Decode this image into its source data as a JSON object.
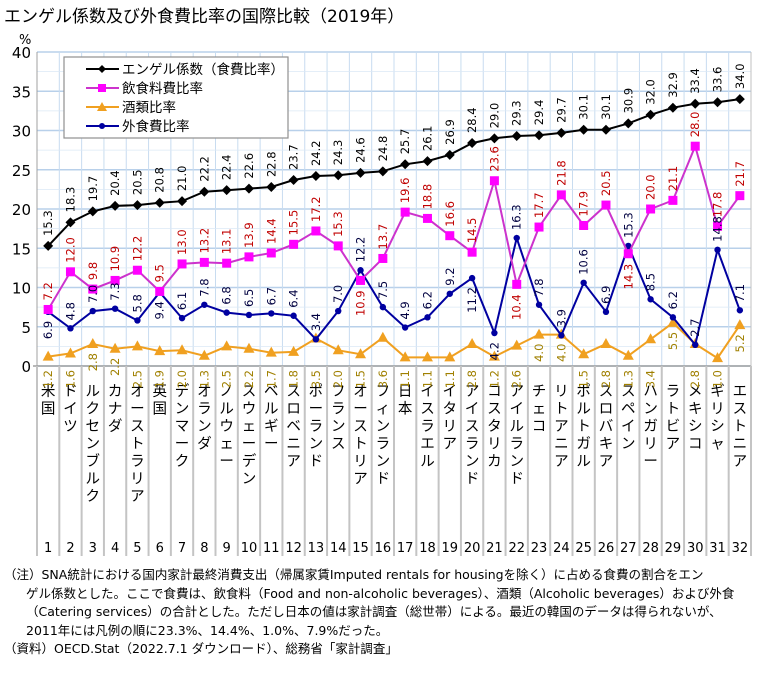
{
  "title": "エンゲル係数及び外食費比率の国際比較（2019年）",
  "chart_data": {
    "type": "line",
    "title": "エンゲル係数及び外食費比率の国際比較（2019年）",
    "ylabel": "%",
    "xlabel": "",
    "ylim": [
      0,
      40
    ],
    "yticks": [
      0,
      5,
      10,
      15,
      20,
      25,
      30,
      35,
      40
    ],
    "grid": true,
    "legend_position": "top-left",
    "categories": [
      "米国",
      "ドイツ",
      "ルクセンブルク",
      "カナダ",
      "オーストラリア",
      "英国",
      "デンマーク",
      "オランダ",
      "ノルウェー",
      "スウェーデン",
      "ベルギー",
      "スロベニア",
      "ポーランド",
      "フランス",
      "オーストリア",
      "フィンランド",
      "日本",
      "イスラエル",
      "イタリア",
      "アイスランド",
      "コスタリカ",
      "アイルランド",
      "チェコ",
      "リトアニア",
      "ポルトガル",
      "スロバキア",
      "スペイン",
      "ハンガリー",
      "ラトビア",
      "メキシコ",
      "ギリシャ",
      "エストニア"
    ],
    "category_numbers": [
      "1",
      "2",
      "3",
      "4",
      "5",
      "6",
      "7",
      "8",
      "9",
      "10",
      "11",
      "12",
      "13",
      "14",
      "15",
      "16",
      "17",
      "18",
      "19",
      "20",
      "21",
      "22",
      "23",
      "24",
      "25",
      "26",
      "27",
      "28",
      "29",
      "30",
      "31",
      "32"
    ],
    "series": [
      {
        "name": "エンゲル係数（食費比率）",
        "color": "#000000",
        "marker": "diamond",
        "label_color": "#000000",
        "values": [
          15.3,
          18.3,
          19.7,
          20.4,
          20.5,
          20.8,
          21.0,
          22.2,
          22.4,
          22.6,
          22.8,
          23.7,
          24.2,
          24.3,
          24.6,
          24.8,
          25.7,
          26.1,
          26.9,
          28.4,
          29.0,
          29.3,
          29.4,
          29.7,
          30.1,
          30.1,
          30.9,
          32.0,
          32.9,
          33.4,
          33.6,
          34.0
        ]
      },
      {
        "name": "飲食料費比率",
        "color": "#ff00ff",
        "line_color": "#cc33cc",
        "marker": "square",
        "label_color": "#c00000",
        "values": [
          7.2,
          12.0,
          9.8,
          10.9,
          12.2,
          9.5,
          13.0,
          13.2,
          13.1,
          13.9,
          14.4,
          15.5,
          17.2,
          15.3,
          10.9,
          13.7,
          19.6,
          18.8,
          16.6,
          14.5,
          23.6,
          10.4,
          17.7,
          21.8,
          17.9,
          20.5,
          14.3,
          20.0,
          21.1,
          28.0,
          17.8,
          21.7
        ]
      },
      {
        "name": "酒類比率",
        "color": "#f0a020",
        "marker": "triangle",
        "label_color": "#a08000",
        "values": [
          1.2,
          1.6,
          2.8,
          2.2,
          2.5,
          1.9,
          2.0,
          1.3,
          2.5,
          2.2,
          1.7,
          1.8,
          3.5,
          2.0,
          1.5,
          3.6,
          1.1,
          1.1,
          1.1,
          2.8,
          1.2,
          2.6,
          4.0,
          4.0,
          1.5,
          2.8,
          1.3,
          3.4,
          5.5,
          2.8,
          1.0,
          5.2
        ]
      },
      {
        "name": "外食費比率",
        "color": "#0000a0",
        "marker": "circle",
        "label_color": "#000040",
        "values": [
          6.9,
          4.8,
          7.0,
          7.3,
          5.8,
          9.4,
          6.1,
          7.8,
          6.8,
          6.5,
          6.7,
          6.4,
          3.4,
          7.0,
          12.2,
          7.5,
          4.9,
          6.2,
          9.2,
          11.2,
          4.2,
          16.3,
          7.8,
          3.9,
          10.6,
          6.9,
          15.3,
          8.5,
          6.2,
          2.7,
          14.8,
          7.1
        ]
      }
    ]
  },
  "notes": [
    "（注）SNA統計における国内家計最終消費支出（帰属家賃Imputed rentals for housingを除く）に占める食費の割合をエン",
    "ゲル係数とした。ここで食費は、飲食料（Food and non-alcoholic beverages）、酒類（Alcoholic beverages）および外食",
    "（Catering services）の合計とした。ただし日本の値は家計調査（総世帯）による。最近の韓国のデータは得られないが、",
    "2011年には凡例の順に23.3%、14.4%、1.0%、7.9%だった。",
    "（資料）OECD.Stat（2022.7.1 ダウンロード）、総務省「家計調査」"
  ]
}
